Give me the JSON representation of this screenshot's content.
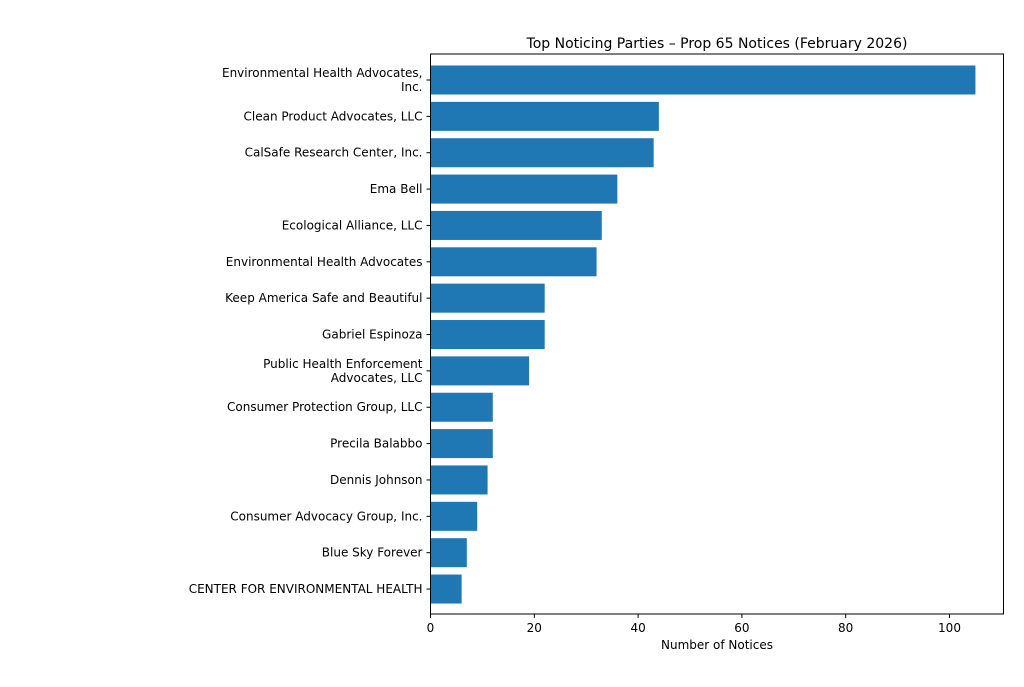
{
  "chart_data": {
    "type": "bar",
    "orientation": "horizontal",
    "title": "Top Noticing Parties – Prop 65 Notices (February 2026)",
    "xlabel": "Number of Notices",
    "ylabel": "",
    "xlim": [
      0,
      110
    ],
    "xticks": [
      0,
      20,
      40,
      60,
      80,
      100
    ],
    "bar_color": "#1f77b4",
    "categories": [
      "Environmental Health Advocates,\nInc.",
      "Clean Product Advocates, LLC",
      "CalSafe Research Center, Inc.",
      "Ema Bell",
      "Ecological Alliance, LLC",
      "Environmental Health Advocates",
      "Keep America Safe and Beautiful",
      "Gabriel Espinoza",
      "Public Health Enforcement\nAdvocates, LLC",
      "Consumer Protection Group, LLC",
      "Precila Balabbo",
      "Dennis Johnson",
      "Consumer Advocacy Group, Inc.",
      "Blue Sky Forever",
      "CENTER FOR ENVIRONMENTAL HEALTH"
    ],
    "values": [
      105,
      44,
      43,
      36,
      33,
      32,
      22,
      22,
      19,
      12,
      12,
      11,
      9,
      7,
      6
    ]
  }
}
